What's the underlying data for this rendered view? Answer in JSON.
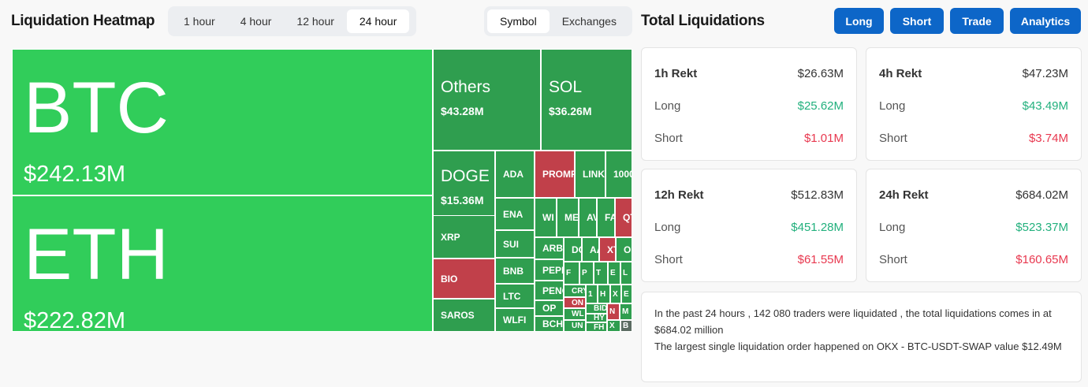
{
  "heatmap": {
    "title": "Liquidation Heatmap",
    "time_tabs": [
      "1 hour",
      "4 hour",
      "12 hour",
      "24 hour"
    ],
    "active_time_tab": "24 hour",
    "view_tabs": [
      "Symbol",
      "Exchanges"
    ],
    "active_view_tab": "Symbol",
    "colors": {
      "dominant": "#31cd5a",
      "long": "#2f9e4f",
      "short": "#c1404a",
      "other": "#5b6b62"
    },
    "cells": [
      {
        "label": "BTC",
        "value": "$242.13M",
        "side": "dominant"
      },
      {
        "label": "ETH",
        "value": "$222.82M",
        "side": "dominant"
      },
      {
        "label": "Others",
        "value": "$43.28M",
        "side": "long"
      },
      {
        "label": "SOL",
        "value": "$36.26M",
        "side": "long"
      },
      {
        "label": "DOGE",
        "value": "$15.36M",
        "side": "long"
      },
      {
        "label": "XRP",
        "side": "long"
      },
      {
        "label": "BIO",
        "side": "short"
      },
      {
        "label": "SAROS",
        "side": "long"
      },
      {
        "label": "ADA",
        "side": "long"
      },
      {
        "label": "ENA",
        "side": "long"
      },
      {
        "label": "SUI",
        "side": "long"
      },
      {
        "label": "BNB",
        "side": "long"
      },
      {
        "label": "LTC",
        "side": "long"
      },
      {
        "label": "WLFI",
        "side": "long"
      },
      {
        "label": "PROMP",
        "side": "short"
      },
      {
        "label": "LINK",
        "side": "long"
      },
      {
        "label": "1000",
        "side": "long"
      },
      {
        "label": "WI",
        "side": "long"
      },
      {
        "label": "ME",
        "side": "long"
      },
      {
        "label": "AV",
        "side": "long"
      },
      {
        "label": "FA",
        "side": "long"
      },
      {
        "label": "QT",
        "side": "short"
      },
      {
        "label": "ARB",
        "side": "long"
      },
      {
        "label": "DO",
        "side": "long"
      },
      {
        "label": "AA",
        "side": "long"
      },
      {
        "label": "XT",
        "side": "short"
      },
      {
        "label": "O",
        "side": "long"
      },
      {
        "label": "PEPE",
        "side": "long"
      },
      {
        "label": "F",
        "side": "long"
      },
      {
        "label": "P",
        "side": "long"
      },
      {
        "label": "T",
        "side": "long"
      },
      {
        "label": "E",
        "side": "long"
      },
      {
        "label": "L",
        "side": "long"
      },
      {
        "label": "PENG",
        "side": "long"
      },
      {
        "label": "OP",
        "side": "long"
      },
      {
        "label": "BCH",
        "side": "long"
      },
      {
        "label": "CRY",
        "side": "long"
      },
      {
        "label": "ON",
        "side": "short"
      },
      {
        "label": "WL",
        "side": "long"
      },
      {
        "label": "UN",
        "side": "long"
      },
      {
        "label": "1",
        "side": "long"
      },
      {
        "label": "H",
        "side": "long"
      },
      {
        "label": "X",
        "side": "long"
      },
      {
        "label": "E",
        "side": "long"
      },
      {
        "label": "BID",
        "side": "long"
      },
      {
        "label": "HY",
        "side": "long"
      },
      {
        "label": "FH",
        "side": "long"
      },
      {
        "label": "N",
        "side": "short"
      },
      {
        "label": "M",
        "side": "long"
      },
      {
        "label": "X",
        "side": "long"
      },
      {
        "label": "B",
        "side": "other"
      }
    ]
  },
  "totals": {
    "title": "Total Liquidations",
    "buttons": [
      "Long",
      "Short",
      "Trade",
      "Analytics"
    ],
    "cards": [
      {
        "label": "1h Rekt",
        "total": "$26.63M",
        "long_label": "Long",
        "long": "$25.62M",
        "short_label": "Short",
        "short": "$1.01M"
      },
      {
        "label": "4h Rekt",
        "total": "$47.23M",
        "long_label": "Long",
        "long": "$43.49M",
        "short_label": "Short",
        "short": "$3.74M"
      },
      {
        "label": "12h Rekt",
        "total": "$512.83M",
        "long_label": "Long",
        "long": "$451.28M",
        "short_label": "Short",
        "short": "$61.55M"
      },
      {
        "label": "24h Rekt",
        "total": "$684.02M",
        "long_label": "Long",
        "long": "$523.37M",
        "short_label": "Short",
        "short": "$160.65M"
      }
    ],
    "summary_line1": "In the past 24 hours , 142 080 traders were liquidated , the total liquidations comes in at $684.02 million",
    "summary_line2": "The largest single liquidation order happened on OKX - BTC-USDT-SWAP value $12.49M"
  }
}
